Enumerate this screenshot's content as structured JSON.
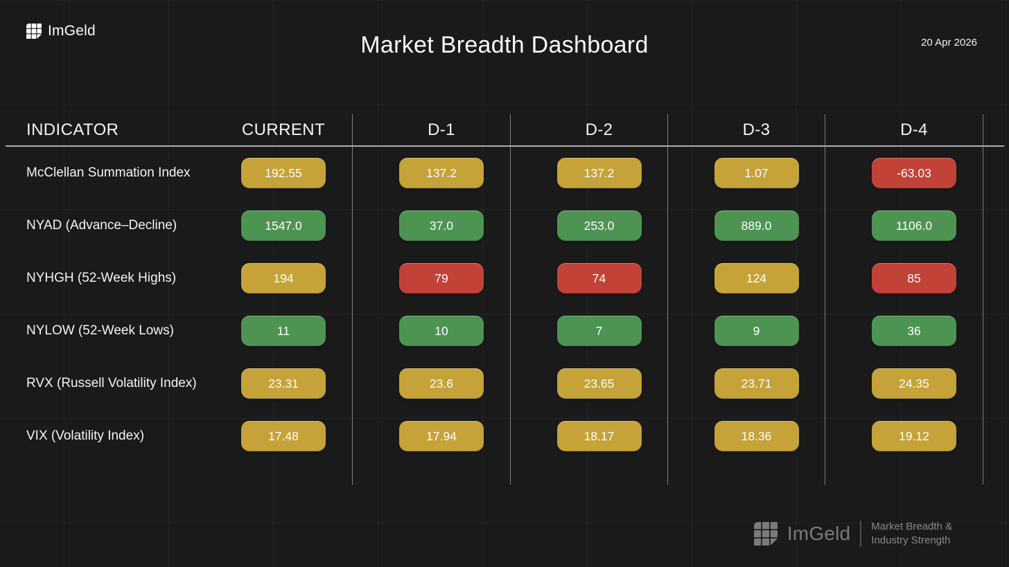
{
  "header": {
    "brand": "ImGeld",
    "title": "Market Breadth Dashboard",
    "date": "20 Apr 2026"
  },
  "icons": {
    "brand": "grid-logo-icon"
  },
  "colors": {
    "warn": "#c5a339",
    "good": "#4d9453",
    "bad": "#c34238",
    "background": "#1a1a1b",
    "pill_text": "#ffffff"
  },
  "table": {
    "columns": [
      "INDICATOR",
      "CURRENT",
      "D-1",
      "D-2",
      "D-3",
      "D-4"
    ],
    "rows": [
      {
        "label": "McClellan Summation Index",
        "values": [
          {
            "text": "192.55",
            "status": "warn"
          },
          {
            "text": "137.2",
            "status": "warn"
          },
          {
            "text": "137.2",
            "status": "warn"
          },
          {
            "text": "1.07",
            "status": "warn"
          },
          {
            "text": "-63.03",
            "status": "bad"
          }
        ]
      },
      {
        "label": "NYAD (Advance–Decline)",
        "values": [
          {
            "text": "1547.0",
            "status": "good"
          },
          {
            "text": "37.0",
            "status": "good"
          },
          {
            "text": "253.0",
            "status": "good"
          },
          {
            "text": "889.0",
            "status": "good"
          },
          {
            "text": "1106.0",
            "status": "good"
          }
        ]
      },
      {
        "label": "NYHGH (52-Week Highs)",
        "values": [
          {
            "text": "194",
            "status": "warn"
          },
          {
            "text": "79",
            "status": "bad"
          },
          {
            "text": "74",
            "status": "bad"
          },
          {
            "text": "124",
            "status": "warn"
          },
          {
            "text": "85",
            "status": "bad"
          }
        ]
      },
      {
        "label": "NYLOW (52-Week Lows)",
        "values": [
          {
            "text": "11",
            "status": "good"
          },
          {
            "text": "10",
            "status": "good"
          },
          {
            "text": "7",
            "status": "good"
          },
          {
            "text": "9",
            "status": "good"
          },
          {
            "text": "36",
            "status": "good"
          }
        ]
      },
      {
        "label": "RVX (Russell Volatility Index)",
        "values": [
          {
            "text": "23.31",
            "status": "warn"
          },
          {
            "text": "23.6",
            "status": "warn"
          },
          {
            "text": "23.65",
            "status": "warn"
          },
          {
            "text": "23.71",
            "status": "warn"
          },
          {
            "text": "24.35",
            "status": "warn"
          }
        ]
      },
      {
        "label": "VIX (Volatility Index)",
        "values": [
          {
            "text": "17.48",
            "status": "warn"
          },
          {
            "text": "17.94",
            "status": "warn"
          },
          {
            "text": "18.17",
            "status": "warn"
          },
          {
            "text": "18.36",
            "status": "warn"
          },
          {
            "text": "19.12",
            "status": "warn"
          }
        ]
      }
    ]
  },
  "footer": {
    "brand": "ImGeld",
    "tagline_line1": "Market Breadth &",
    "tagline_line2": "Industry Strength"
  }
}
